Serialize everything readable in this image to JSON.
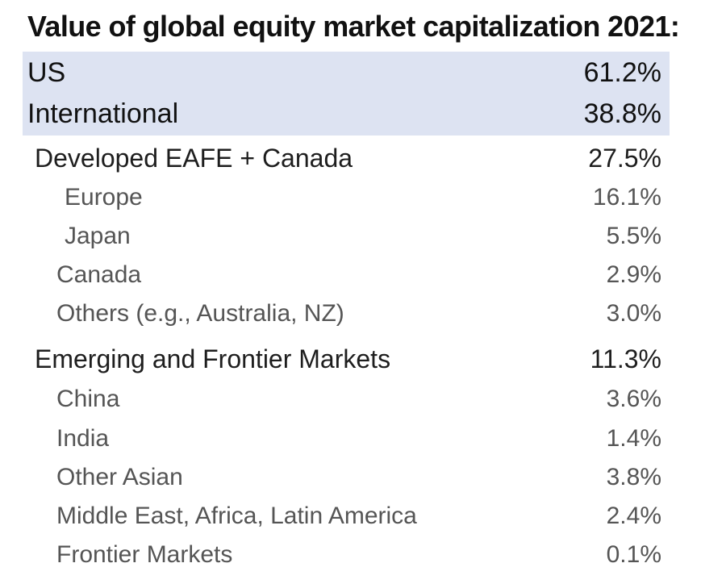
{
  "chart_data": {
    "type": "table",
    "title": "Value of global equity market capitalization 2021:",
    "rows": [
      {
        "label": "US",
        "value": "61.2%"
      },
      {
        "label": "International",
        "value": "38.8%"
      },
      {
        "label": "Developed EAFE + Canada",
        "value": "27.5%"
      },
      {
        "label": "Europe",
        "value": "16.1%"
      },
      {
        "label": "Japan",
        "value": "5.5%"
      },
      {
        "label": "Canada",
        "value": "2.9%"
      },
      {
        "label": "Others (e.g., Australia, NZ)",
        "value": "3.0%"
      },
      {
        "label": "Emerging and Frontier Markets",
        "value": "11.3%"
      },
      {
        "label": "China",
        "value": "3.6%"
      },
      {
        "label": "India",
        "value": "1.4%"
      },
      {
        "label": "Other Asian",
        "value": "3.8%"
      },
      {
        "label": "Middle East, Africa, Latin America",
        "value": "2.4%"
      },
      {
        "label": "Frontier Markets",
        "value": "0.1%"
      }
    ],
    "colors": {
      "highlight": "#dde3f2"
    }
  }
}
